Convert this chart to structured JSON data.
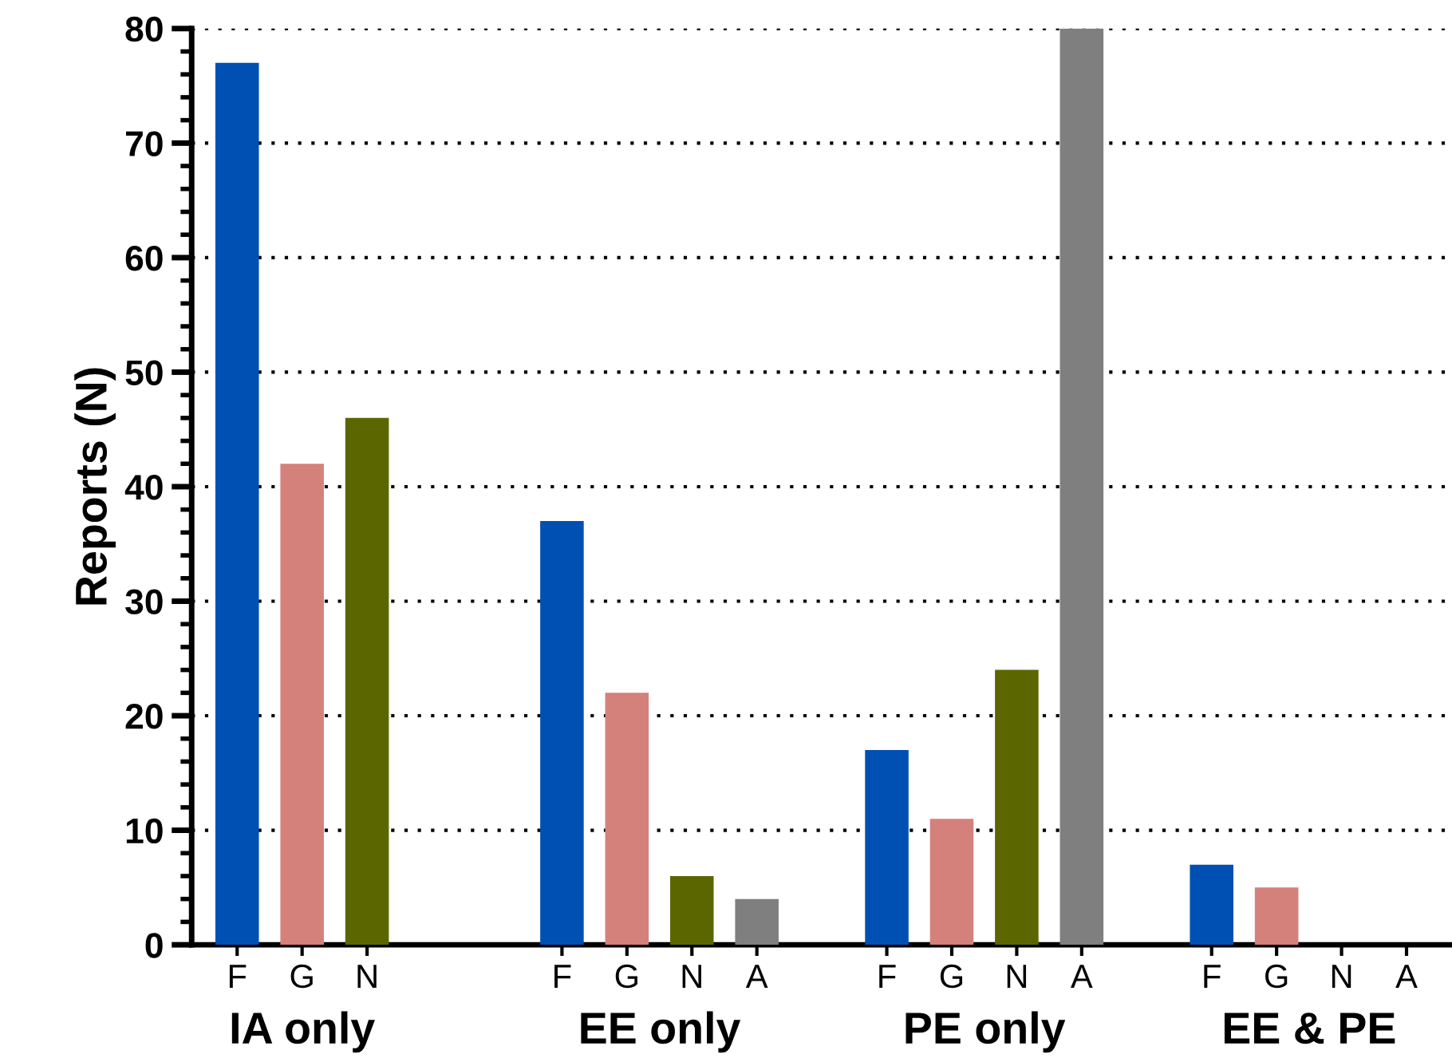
{
  "chart_data": {
    "type": "bar",
    "ylabel": "Reports (N)",
    "categories": [
      "F",
      "G",
      "N",
      null,
      null,
      "F",
      "G",
      "N",
      "A",
      null,
      "F",
      "G",
      "N",
      "A",
      null,
      "F",
      "G",
      "N",
      "A"
    ],
    "values": [
      77,
      42,
      46,
      null,
      null,
      37,
      22,
      6,
      4,
      null,
      17,
      11,
      24,
      80,
      null,
      7,
      5,
      0,
      0
    ],
    "colors": [
      "#0050b4",
      "#d4817c",
      "#5c6600",
      null,
      null,
      "#0050b4",
      "#d4817c",
      "#5c6600",
      "#7f7f7f",
      null,
      "#0050b4",
      "#d4817c",
      "#5c6600",
      "#7f7f7f",
      null,
      "#0050b4",
      "#d4817c",
      "#5c6600",
      "#7f7f7f"
    ],
    "ylim": [
      0,
      80
    ],
    "yticks": [
      0,
      10,
      20,
      30,
      40,
      50,
      60,
      70,
      80
    ],
    "grid": "y",
    "annotations": [
      "IA only",
      "EE only",
      "PE only",
      "EE & PE"
    ]
  }
}
